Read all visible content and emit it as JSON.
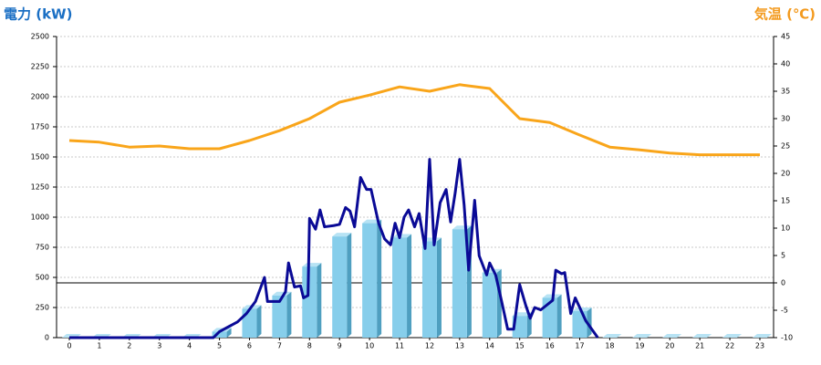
{
  "chart_data": {
    "type": "bar",
    "y_label": "電力 (kW)",
    "y2_label": "気温 (℃)",
    "y_label_color": "#1a6fc4",
    "y2_label_color": "#f39a1e",
    "categories": [
      "0",
      "1",
      "2",
      "3",
      "4",
      "5",
      "6",
      "7",
      "8",
      "9",
      "10",
      "11",
      "12",
      "13",
      "14",
      "15",
      "16",
      "17",
      "18",
      "19",
      "20",
      "21",
      "22",
      "23"
    ],
    "ylim": [
      0,
      2500
    ],
    "yticks": [
      0,
      250,
      500,
      750,
      1000,
      1250,
      1500,
      1750,
      2000,
      2250,
      2500
    ],
    "y2lim": [
      -10,
      45
    ],
    "y2ticks": [
      45,
      40,
      35,
      30,
      25,
      20,
      15,
      10,
      5,
      0,
      -5,
      -10
    ],
    "grid": true,
    "series": [
      {
        "type": "bar",
        "color": "#87ceeb",
        "values": [
          0,
          0,
          0,
          0,
          0,
          50,
          240,
          350,
          590,
          840,
          950,
          830,
          800,
          900,
          540,
          180,
          330,
          220,
          0,
          0,
          0,
          0,
          0,
          0
        ]
      },
      {
        "type": "line",
        "color": "#0a0a96",
        "x": [
          0,
          4.8,
          5,
          5.3,
          5.6,
          5.9,
          6.2,
          6.5,
          6.6,
          7,
          7.2,
          7.3,
          7.5,
          7.7,
          7.8,
          7.95,
          8,
          8.2,
          8.35,
          8.5,
          8.8,
          9,
          9.2,
          9.35,
          9.5,
          9.7,
          9.9,
          10.05,
          10.3,
          10.5,
          10.7,
          10.85,
          11,
          11.15,
          11.3,
          11.5,
          11.65,
          11.85,
          12,
          12.15,
          12.35,
          12.55,
          12.7,
          12.85,
          13,
          13.15,
          13.3,
          13.5,
          13.65,
          13.9,
          14,
          14.2,
          14.4,
          14.6,
          14.8,
          15,
          15.2,
          15.35,
          15.5,
          15.7,
          15.9,
          16.1,
          16.2,
          16.4,
          16.5,
          16.7,
          16.85,
          17,
          17.2,
          17.4,
          17.6
        ],
        "values": [
          0,
          0,
          50,
          90,
          130,
          200,
          300,
          500,
          300,
          300,
          380,
          620,
          420,
          430,
          330,
          350,
          990,
          900,
          1060,
          920,
          930,
          940,
          1080,
          1050,
          920,
          1330,
          1230,
          1230,
          950,
          820,
          770,
          950,
          830,
          1000,
          1060,
          920,
          1030,
          740,
          1480,
          770,
          1120,
          1230,
          960,
          1200,
          1480,
          1100,
          560,
          1140,
          680,
          520,
          620,
          520,
          300,
          70,
          70,
          440,
          270,
          160,
          250,
          230,
          270,
          310,
          560,
          530,
          540,
          200,
          330,
          250,
          140,
          70,
          0
        ]
      },
      {
        "type": "line",
        "axis": "y2",
        "color": "#f9a51a",
        "values": [
          26,
          25.7,
          24.8,
          25,
          24.5,
          24.5,
          26,
          27.8,
          30,
          33,
          34.3,
          35.8,
          35,
          36.2,
          35.5,
          30,
          29.3,
          27,
          24.8,
          24.3,
          23.7,
          23.4,
          23.4,
          23.4
        ]
      }
    ]
  }
}
